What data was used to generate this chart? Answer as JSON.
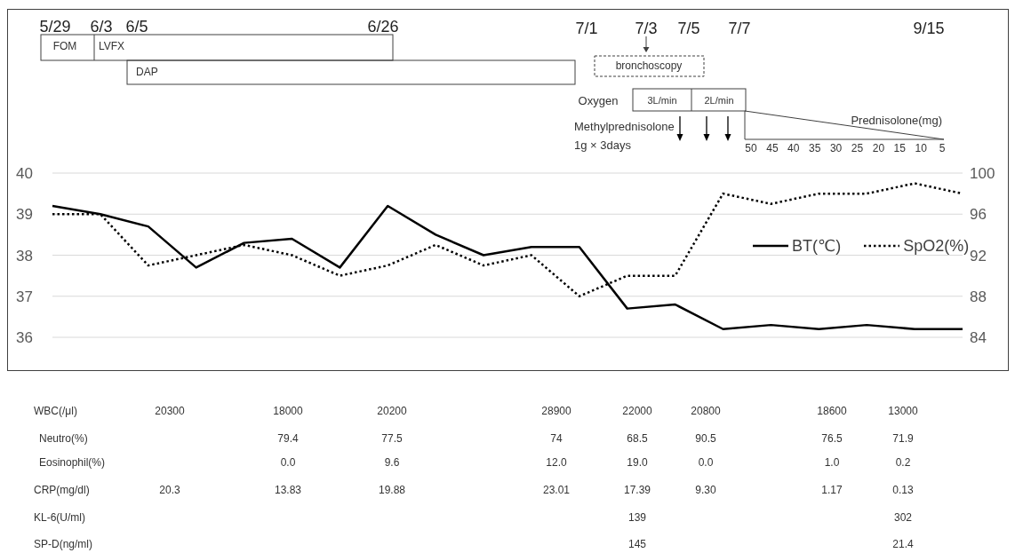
{
  "chart_data": {
    "type": "line",
    "categories": [
      null,
      null,
      null,
      null,
      null,
      null,
      null,
      null,
      null,
      null,
      null,
      null,
      null,
      null,
      null,
      null,
      null,
      null,
      null,
      null
    ],
    "series": [
      {
        "name": "BT(℃)",
        "color": "#000000",
        "line_style": "solid",
        "values": [
          39.2,
          39.0,
          38.7,
          37.7,
          38.3,
          38.4,
          37.7,
          39.2,
          38.5,
          38.0,
          38.2,
          38.2,
          36.7,
          36.8,
          36.2,
          36.3,
          36.2,
          36.3,
          36.2,
          36.2
        ]
      },
      {
        "name": "SpO2(%)",
        "color": "#000000",
        "line_style": "dotted",
        "axis": "y2",
        "values": [
          96,
          96,
          91,
          92,
          93,
          92,
          90,
          91,
          93,
          91,
          92,
          88,
          90,
          90,
          98,
          97,
          98,
          98,
          99,
          98
        ]
      }
    ],
    "ylim": [
      36,
      40
    ],
    "yticks": [
      36,
      37,
      38,
      39,
      40
    ],
    "y2lim": [
      84,
      100
    ],
    "y2ticks": [
      84,
      88,
      92,
      96,
      100
    ],
    "grid": "y",
    "legend": "right",
    "tick_labels": "y",
    "annotations": [
      "5/29",
      "6/3",
      "6/5",
      "6/26",
      "7/1",
      "7/3",
      "7/5",
      "7/7",
      "9/15",
      "FOM",
      "LVFX",
      "DAP",
      "bronchoscopy",
      "Oxygen",
      "3L/min",
      "2L/min",
      "Methylprednisolone",
      "1g × 3days",
      "Prednisolone(mg)",
      "50",
      "45",
      "40",
      "35",
      "30",
      "25",
      "20",
      "15",
      "10",
      "5",
      "WBC(/μl)",
      "20300",
      "18000",
      "20200",
      "28900",
      "22000",
      "20800",
      "18600",
      "13000",
      "Neutro(%)",
      "79.4",
      "77.5",
      "74",
      "68.5",
      "90.5",
      "76.5",
      "71.9",
      "Eosinophil(%)",
      "0.0",
      "9.6",
      "12.0",
      "19.0",
      "0.0",
      "1.0",
      "0.2",
      "CRP(mg/dl)",
      "20.3",
      "13.83",
      "19.88",
      "23.01",
      "17.39",
      "9.30",
      "1.17",
      "0.13",
      "KL-6(U/ml)",
      "139",
      "302",
      "SP-D(ng/ml)",
      "145",
      "21.4"
    ]
  }
}
